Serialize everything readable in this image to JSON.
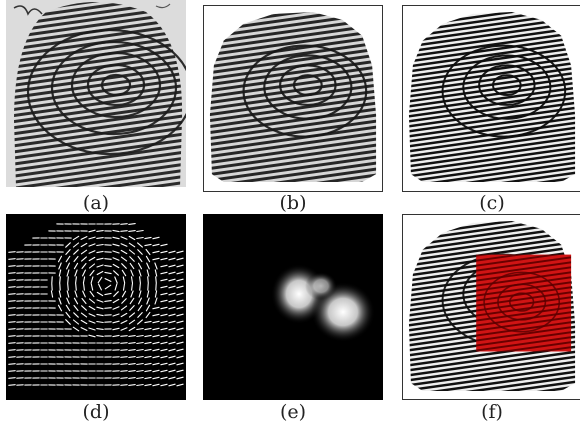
{
  "figure": {
    "panels": [
      {
        "id": "a",
        "caption": "(a)",
        "content": "raw fingerprint image"
      },
      {
        "id": "b",
        "caption": "(b)",
        "content": "segmented fingerprint"
      },
      {
        "id": "c",
        "caption": "(c)",
        "content": "enhanced fingerprint"
      },
      {
        "id": "d",
        "caption": "(d)",
        "content": "orientation field"
      },
      {
        "id": "e",
        "caption": "(e)",
        "content": "singular region response"
      },
      {
        "id": "f",
        "caption": "(f)",
        "content": "region of interest overlay"
      }
    ],
    "colors": {
      "ridge": "#1c1c1c",
      "paper": "#ececec",
      "overlay": "#c41010",
      "background_dark": "#000000"
    }
  }
}
